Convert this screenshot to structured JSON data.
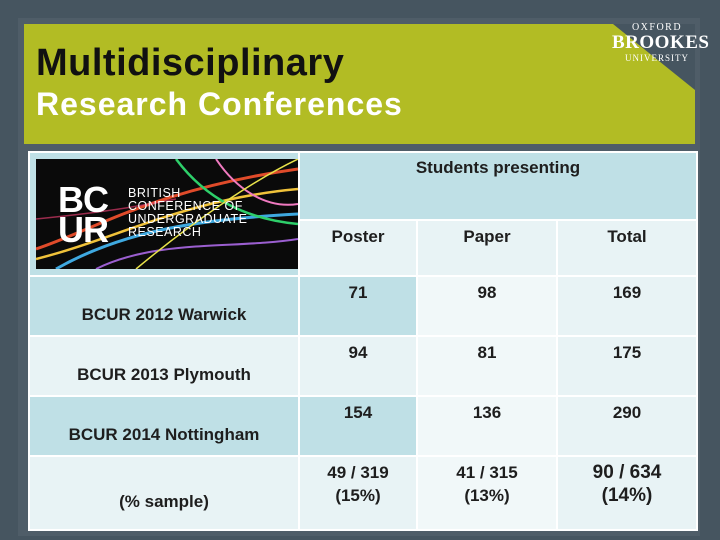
{
  "header": {
    "title_line1": "Multidisciplinary",
    "title_line2": "Research Conferences"
  },
  "logo": {
    "line1": "OXFORD",
    "line2": "BROOKES",
    "line3": "UNIVERSITY"
  },
  "bcur_image": {
    "letters_top": "BC",
    "letters_bottom": "UR",
    "words": [
      "BRITISH",
      "CONFERENCE OF",
      "UNDERGRADUATE",
      "RESEARCH"
    ]
  },
  "table": {
    "group_header": "Students presenting",
    "columns": [
      "Poster",
      "Paper",
      "Total"
    ],
    "rows": [
      {
        "label": "BCUR 2012  Warwick",
        "poster": "71",
        "paper": "98",
        "total": "169"
      },
      {
        "label": "BCUR 2013  Plymouth",
        "poster": "94",
        "paper": "81",
        "total": "175"
      },
      {
        "label": "BCUR 2014  Nottingham",
        "poster": "154",
        "paper": "136",
        "total": "290"
      }
    ],
    "sample": {
      "label": "(%  sample)",
      "poster_line1": "49 / 319",
      "poster_line2": "(15%)",
      "paper_line1": "41 / 315",
      "paper_line2": "(13%)",
      "total_line1": "90 / 634",
      "total_line2": "(14%)"
    }
  },
  "colors": {
    "background": "#465560",
    "banner": "#b2bc24",
    "cell_light": "#bfe0e6",
    "cell_pale": "#e8f3f5"
  }
}
